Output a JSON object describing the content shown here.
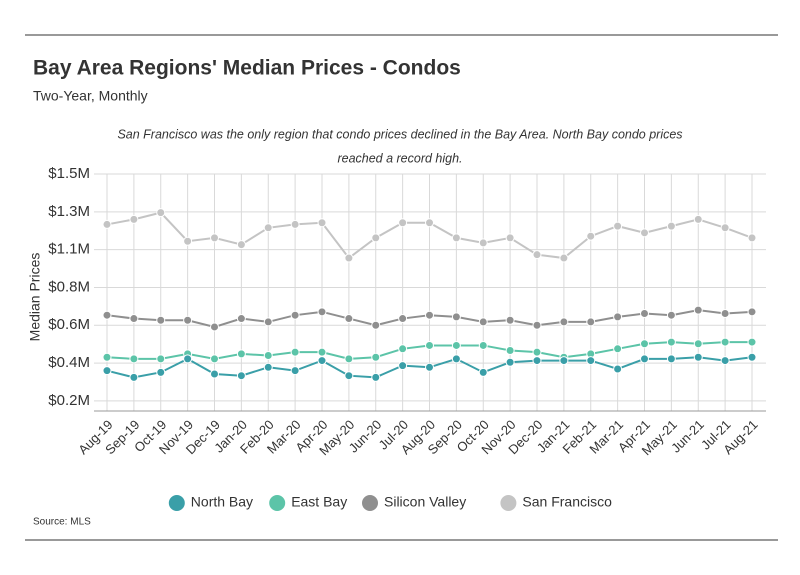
{
  "chart_data": {
    "type": "line",
    "title": "Bay Area Regions' Median Prices - Condos",
    "subtitle": "Two-Year, Monthly",
    "annotation": [
      "San Francisco was the only region that condo prices declined in the Bay Area. North Bay condo prices",
      "reached a record high."
    ],
    "y_label": "Median Prices",
    "source": "Source:  MLS",
    "categories": [
      "Aug-19",
      "Sep-19",
      "Oct-19",
      "Nov-19",
      "Dec-19",
      "Jan-20",
      "Feb-20",
      "Mar-20",
      "Apr-20",
      "May-20",
      "Jun-20",
      "Jul-20",
      "Aug-20",
      "Sep-20",
      "Oct-20",
      "Nov-20",
      "Dec-20",
      "Jan-21",
      "Feb-21",
      "Mar-21",
      "Apr-21",
      "May-21",
      "Jun-21",
      "Jul-21",
      "Aug-21"
    ],
    "series": [
      {
        "name": "North Bay",
        "color": "#3a9fa8",
        "values": [
          0.33,
          0.29,
          0.32,
          0.4,
          0.31,
          0.3,
          0.35,
          0.33,
          0.39,
          0.3,
          0.29,
          0.36,
          0.35,
          0.4,
          0.32,
          0.38,
          0.39,
          0.39,
          0.39,
          0.34,
          0.4,
          0.4,
          0.41,
          0.39,
          0.41
        ]
      },
      {
        "name": "East Bay",
        "color": "#5cc4a8",
        "values": [
          0.41,
          0.4,
          0.4,
          0.43,
          0.4,
          0.43,
          0.42,
          0.44,
          0.44,
          0.4,
          0.41,
          0.46,
          0.48,
          0.48,
          0.48,
          0.45,
          0.44,
          0.41,
          0.43,
          0.46,
          0.49,
          0.5,
          0.49,
          0.5,
          0.5
        ]
      },
      {
        "name": "Silicon Valley",
        "color": "#8f8f8f",
        "values": [
          0.66,
          0.64,
          0.63,
          0.63,
          0.59,
          0.64,
          0.62,
          0.66,
          0.68,
          0.64,
          0.6,
          0.64,
          0.66,
          0.65,
          0.62,
          0.63,
          0.6,
          0.62,
          0.62,
          0.65,
          0.67,
          0.66,
          0.69,
          0.67,
          0.68
        ]
      },
      {
        "name": "San Francisco",
        "color": "#c4c4c4",
        "values": [
          1.2,
          1.23,
          1.27,
          1.1,
          1.12,
          1.08,
          1.18,
          1.2,
          1.21,
          1.0,
          1.12,
          1.21,
          1.21,
          1.12,
          1.09,
          1.12,
          1.02,
          1.0,
          1.13,
          1.19,
          1.15,
          1.19,
          1.23,
          1.18,
          1.12
        ]
      }
    ],
    "ylim": [
      0.09,
      1.5
    ],
    "yticks": [
      {
        "value": 0.15,
        "label": "$0.2M"
      },
      {
        "value": 0.375,
        "label": "$0.4M"
      },
      {
        "value": 0.6,
        "label": "$0.6M"
      },
      {
        "value": 0.825,
        "label": "$0.8M"
      },
      {
        "value": 1.05,
        "label": "$1.1M"
      },
      {
        "value": 1.275,
        "label": "$1.3M"
      },
      {
        "value": 1.5,
        "label": "$1.5M"
      }
    ],
    "grid": true
  }
}
